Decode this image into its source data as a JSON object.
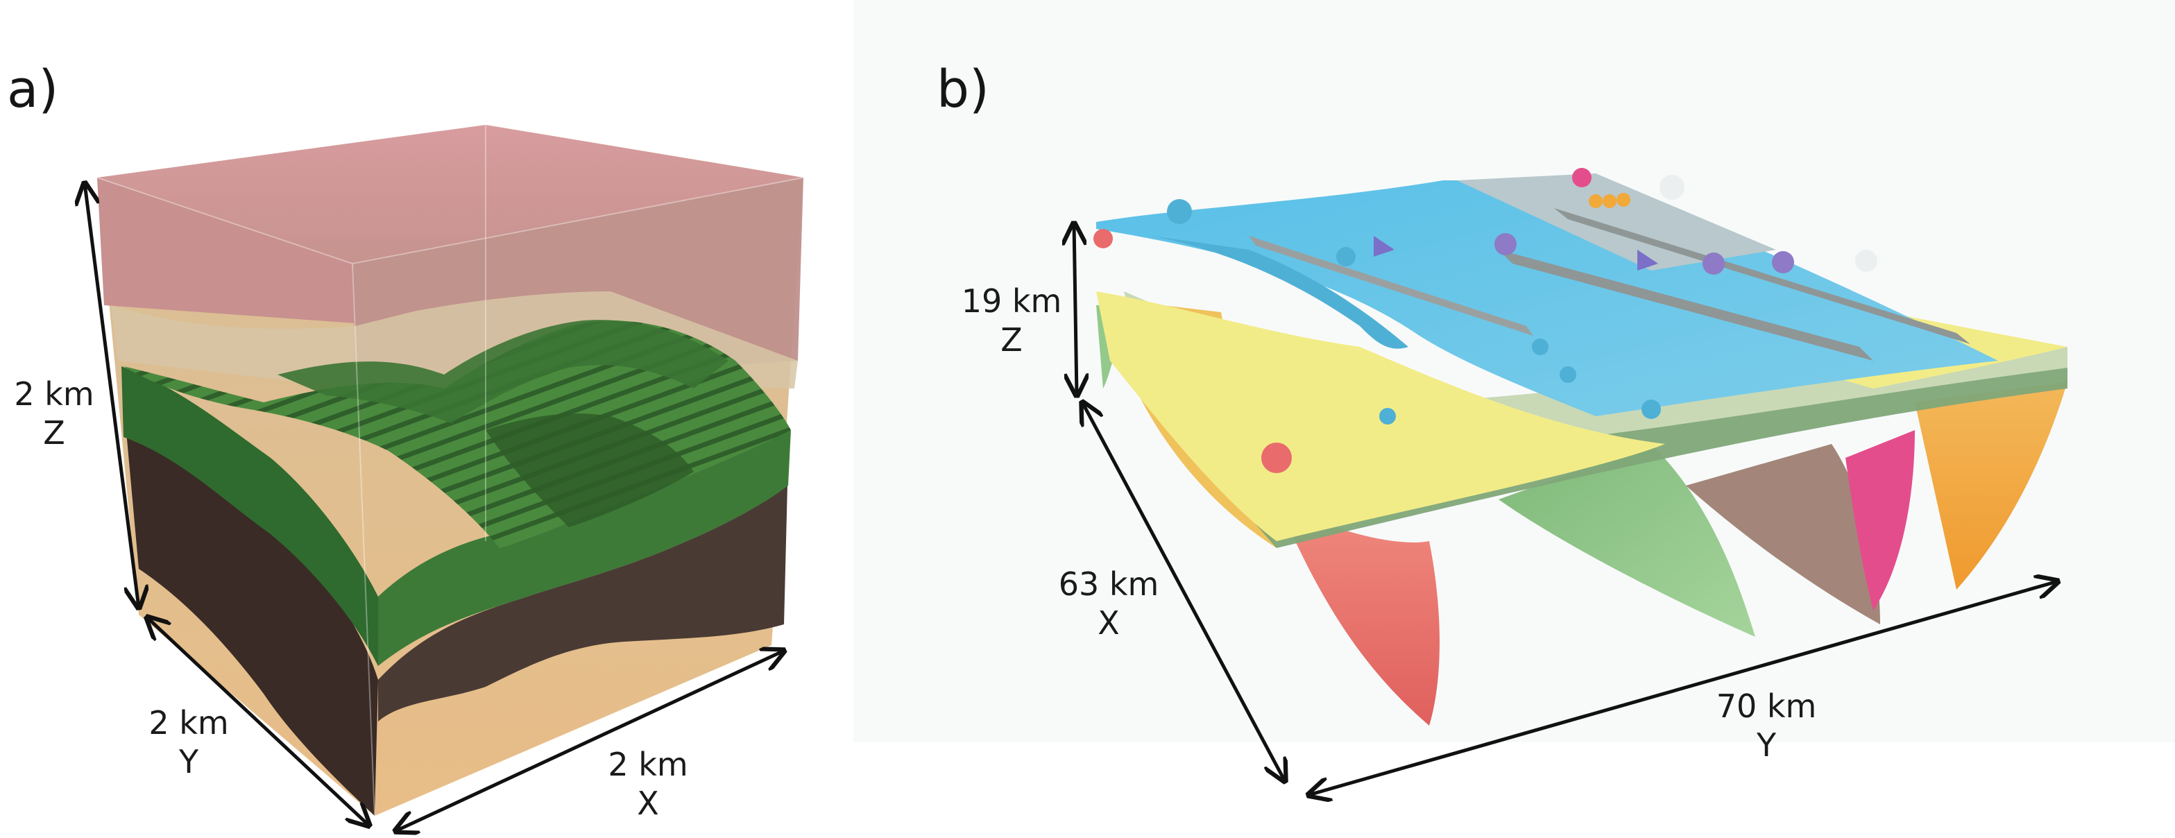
{
  "panel_a": {
    "label": "a)",
    "z_dim": {
      "value": "2 km",
      "axis": "Z"
    },
    "y_dim": {
      "value": "2 km",
      "axis": "Y"
    },
    "x_dim": {
      "value": "2 km",
      "axis": "X"
    }
  },
  "panel_b": {
    "label": "b)",
    "z_dim": {
      "value": "19 km",
      "axis": "Z"
    },
    "x_dim": {
      "value": "63 km",
      "axis": "X"
    },
    "y_dim": {
      "value": "70 km",
      "axis": "Y"
    }
  },
  "colors": {
    "block_top": "#d9a0a3",
    "block_upper": "#c9918f",
    "green_layer": "#3e7a3a",
    "dark_layer": "#4a3a34",
    "sand_layer": "#e2bc8c",
    "fault_blue": "#67c4e6",
    "fault_yellow": "#f2ec88",
    "fault_orange": "#f1a93a",
    "fault_red": "#e96b6b",
    "fault_green": "#93c98a",
    "fault_pink": "#e44d8c",
    "fault_brown": "#a8887a"
  }
}
